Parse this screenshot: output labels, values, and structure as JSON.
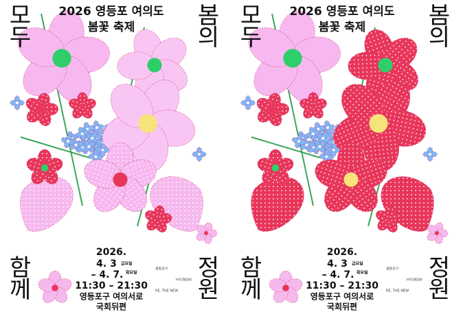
{
  "posters": [
    {
      "title": "2026 영등포 여의도",
      "subtitle": "봄꽃 축제",
      "corners": [
        "모두",
        "봄의",
        "함께",
        "정원"
      ],
      "year": "2026.",
      "start": "4. 3",
      "start_day": "금요일",
      "end": "– 4. 7.",
      "end_day": "화요일",
      "time": "11:30 – 21:30",
      "place": "영등포구 여의서로",
      "place_detail": "국회뒤편",
      "sponsors": [
        "영등포구",
        "HYUNDAI",
        "RE. THE NEW"
      ]
    },
    {
      "title": "2026 영등포 여의도",
      "subtitle": "봄꽃 축제",
      "corners": [
        "모두",
        "봄의",
        "함께",
        "정원"
      ],
      "year": "2026.",
      "start": "4. 3",
      "start_day": "금요일",
      "end": "– 4. 7.",
      "end_day": "화요일",
      "time": "11:30 – 21:30",
      "place": "영등포구 여의서로",
      "place_detail": "국회뒤편",
      "sponsors": [
        "영등포구",
        "HYUNDAI",
        "RE. THE NEW"
      ]
    }
  ]
}
